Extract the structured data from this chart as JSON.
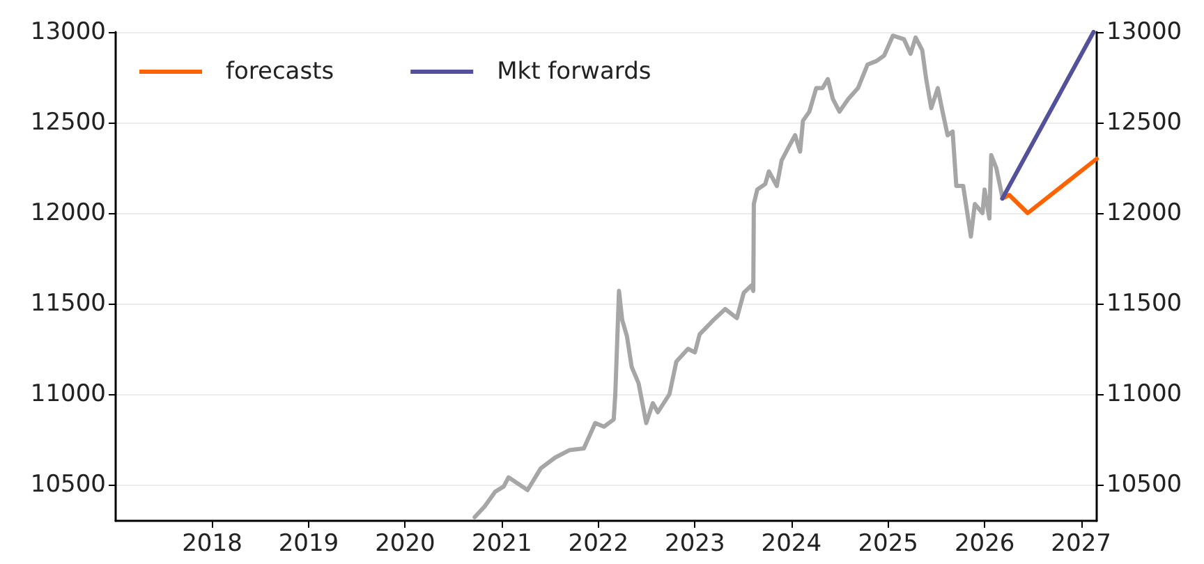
{
  "chart_data": {
    "type": "line",
    "xlim": [
      "2017-01",
      "2027-03"
    ],
    "xticks": [
      "2018",
      "2019",
      "2020",
      "2021",
      "2022",
      "2023",
      "2024",
      "2025",
      "2026",
      "2027"
    ],
    "ylim": [
      10300,
      13000
    ],
    "yticks": [
      10500,
      11000,
      11500,
      12000,
      12500,
      13000
    ],
    "y2lim": [
      10300,
      13000
    ],
    "y2ticks": [
      10500,
      11000,
      11500,
      12000,
      12500,
      13000
    ],
    "grid": "y",
    "legend": "top left",
    "marker": "none",
    "line_style": "solid",
    "series": [
      {
        "color": "#a6a6a6",
        "x": [
          "2020-09-20",
          "2020-10-28",
          "2020-12-06",
          "2021-01-08",
          "2021-01-26",
          "2021-04-08",
          "2021-05-28",
          "2021-07-22",
          "2021-09-13",
          "2021-11-07",
          "2021-12-20",
          "2022-01-22",
          "2022-02-28",
          "2022-03-06",
          "2022-03-20",
          "2022-04-01",
          "2022-04-19",
          "2022-05-07",
          "2022-06-02",
          "2022-07-01",
          "2022-07-26",
          "2022-08-14",
          "2022-09-27",
          "2022-10-23",
          "2022-12-06",
          "2023-01-01",
          "2023-01-19",
          "2023-03-13",
          "2023-04-26",
          "2023-06-09",
          "2023-07-05",
          "2023-08-03",
          "2023-08-10",
          "2023-08-12",
          "2023-08-25",
          "2023-09-24",
          "2023-10-08",
          "2023-11-07",
          "2023-11-25",
          "2023-12-20",
          "2024-01-15",
          "2024-02-03",
          "2024-02-14",
          "2024-03-09",
          "2024-04-04",
          "2024-04-28",
          "2024-05-18",
          "2024-06-06",
          "2024-07-01",
          "2024-08-03",
          "2024-09-09",
          "2024-10-15",
          "2024-11-18",
          "2024-12-17",
          "2025-01-19",
          "2025-03-02",
          "2025-03-27",
          "2025-04-15",
          "2025-05-10",
          "2025-05-25",
          "2025-06-13",
          "2025-07-08",
          "2025-07-26",
          "2025-08-14",
          "2025-09-02",
          "2025-09-16",
          "2025-10-12",
          "2025-11-10",
          "2025-11-25",
          "2025-12-24",
          "2026-01-01",
          "2026-01-19",
          "2026-01-26",
          "2026-02-14",
          "2026-03-09"
        ],
        "values": [
          10320,
          10380,
          10460,
          10490,
          10540,
          10470,
          10590,
          10650,
          10690,
          10700,
          10840,
          10820,
          10860,
          11000,
          11570,
          11410,
          11320,
          11150,
          11060,
          10840,
          10950,
          10900,
          11000,
          11180,
          11250,
          11230,
          11330,
          11410,
          11470,
          11420,
          11560,
          11600,
          11570,
          12050,
          12130,
          12160,
          12230,
          12150,
          12290,
          12360,
          12430,
          12340,
          12510,
          12560,
          12690,
          12690,
          12740,
          12630,
          12560,
          12630,
          12690,
          12820,
          12840,
          12870,
          12980,
          12960,
          12880,
          12970,
          12900,
          12740,
          12580,
          12690,
          12560,
          12430,
          12450,
          12150,
          12150,
          11870,
          12050,
          12000,
          12130,
          11970,
          12320,
          12250,
          12090
        ]
      },
      {
        "name": "forecasts",
        "color": "#ff6200",
        "x": [
          "2026-03-09",
          "2026-04-04",
          "2026-06-13",
          "2027-03-01"
        ],
        "values": [
          12080,
          12100,
          12000,
          12300
        ]
      },
      {
        "name": "Mkt forwards",
        "color": "#525199",
        "x": [
          "2026-03-09",
          "2027-02-17"
        ],
        "values": [
          12080,
          13000
        ]
      }
    ]
  }
}
